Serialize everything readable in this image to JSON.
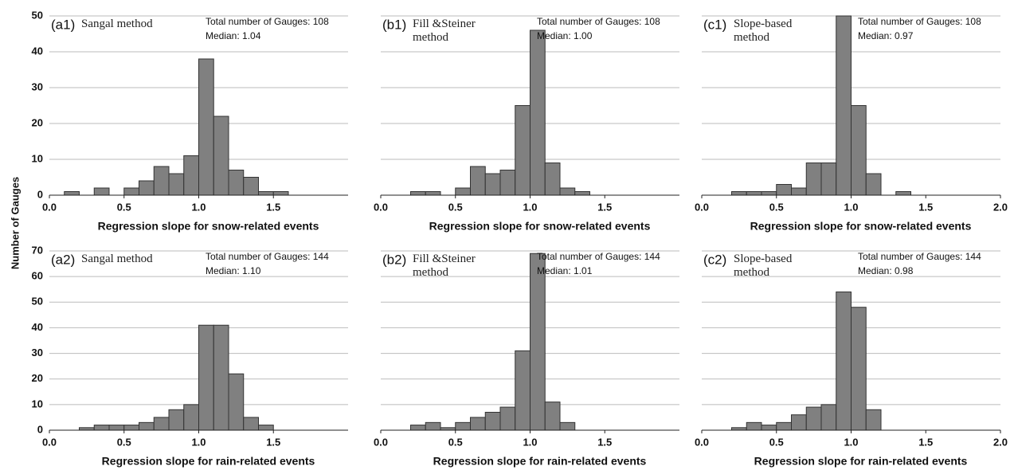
{
  "shared_ylabel": "Number of Gauges",
  "chart_data": [
    {
      "type": "histogram",
      "label": "(a1)",
      "method": "Sangal method",
      "annotations": [
        "Total number of Gauges: 108",
        "Median: 1.04"
      ],
      "xlabel": "Regression slope for snow-related events",
      "bins": [
        0.1,
        0.2,
        0.3,
        0.4,
        0.5,
        0.6,
        0.7,
        0.8,
        0.9,
        1.0,
        1.1,
        1.2,
        1.3,
        1.4,
        1.5,
        1.6
      ],
      "values": [
        1,
        0,
        2,
        0,
        2,
        4,
        8,
        6,
        11,
        38,
        22,
        7,
        5,
        1,
        1
      ],
      "color": "#808080",
      "xlim": [
        0,
        2
      ],
      "xticks": [
        {
          "value": 0,
          "label": "0.0"
        },
        {
          "value": 0.5,
          "label": "0.5"
        },
        {
          "value": 1,
          "label": "1.0"
        },
        {
          "value": 1.5,
          "label": "1.5"
        }
      ],
      "ylim": [
        0,
        50
      ],
      "yticks": [
        0,
        10,
        20,
        30,
        40,
        50
      ],
      "ytick_labels": true,
      "grid": true
    },
    {
      "type": "histogram",
      "label": "(b1)",
      "method": "Fill &Steiner method",
      "annotations": [
        "Total number of Gauges: 108",
        "Median: 1.00"
      ],
      "xlabel": "Regression slope for snow-related events",
      "bins": [
        0.2,
        0.3,
        0.4,
        0.5,
        0.6,
        0.7,
        0.8,
        0.9,
        1.0,
        1.1,
        1.2,
        1.3,
        1.4
      ],
      "values": [
        1,
        1,
        0,
        2,
        8,
        6,
        7,
        25,
        46,
        9,
        2,
        1
      ],
      "color": "#808080",
      "xlim": [
        0,
        2
      ],
      "xticks": [
        {
          "value": 0,
          "label": "0.0"
        },
        {
          "value": 0.5,
          "label": "0.5"
        },
        {
          "value": 1,
          "label": "1.0"
        },
        {
          "value": 1.5,
          "label": "1.5"
        }
      ],
      "ylim": [
        0,
        50
      ],
      "yticks": [
        0,
        10,
        20,
        30,
        40,
        50
      ],
      "ytick_labels": false,
      "grid": true
    },
    {
      "type": "histogram",
      "label": "(c1)",
      "method": "Slope-based method",
      "annotations": [
        "Total number of Gauges: 108",
        "Median: 0.97"
      ],
      "xlabel": "Regression slope for snow-related events",
      "bins": [
        0.2,
        0.3,
        0.4,
        0.5,
        0.6,
        0.7,
        0.8,
        0.9,
        1.0,
        1.1,
        1.2,
        1.3,
        1.4
      ],
      "values": [
        1,
        1,
        1,
        3,
        2,
        9,
        9,
        50,
        25,
        6,
        0,
        1
      ],
      "color": "#808080",
      "xlim": [
        0,
        2
      ],
      "xticks": [
        {
          "value": 0,
          "label": "0.0"
        },
        {
          "value": 0.5,
          "label": "0.5"
        },
        {
          "value": 1,
          "label": "1.0"
        },
        {
          "value": 1.5,
          "label": "1.5"
        },
        {
          "value": 2,
          "label": "2.0"
        }
      ],
      "ylim": [
        0,
        50
      ],
      "yticks": [
        0,
        10,
        20,
        30,
        40,
        50
      ],
      "ytick_labels": false,
      "grid": true
    },
    {
      "type": "histogram",
      "label": "(a2)",
      "method": "Sangal method",
      "annotations": [
        "Total number of Gauges: 144",
        "Median: 1.10"
      ],
      "xlabel": "Regression slope for rain-related events",
      "bins": [
        0.2,
        0.3,
        0.4,
        0.5,
        0.6,
        0.7,
        0.8,
        0.9,
        1.0,
        1.1,
        1.2,
        1.3,
        1.4,
        1.5
      ],
      "values": [
        1,
        2,
        2,
        2,
        3,
        5,
        8,
        10,
        41,
        41,
        22,
        5,
        2
      ],
      "color": "#808080",
      "xlim": [
        0,
        2
      ],
      "xticks": [
        {
          "value": 0,
          "label": "0.0"
        },
        {
          "value": 0.5,
          "label": "0.5"
        },
        {
          "value": 1,
          "label": "1.0"
        },
        {
          "value": 1.5,
          "label": "1.5"
        }
      ],
      "ylim": [
        0,
        70
      ],
      "yticks": [
        0,
        10,
        20,
        30,
        40,
        50,
        60,
        70
      ],
      "ytick_labels": true,
      "grid": true
    },
    {
      "type": "histogram",
      "label": "(b2)",
      "method": "Fill &Steiner method",
      "annotations": [
        "Total number of Gauges: 144",
        "Median: 1.01"
      ],
      "xlabel": "Regression slope for rain-related events",
      "bins": [
        0.2,
        0.3,
        0.4,
        0.5,
        0.6,
        0.7,
        0.8,
        0.9,
        1.0,
        1.1,
        1.2,
        1.3
      ],
      "values": [
        2,
        3,
        1,
        3,
        5,
        7,
        9,
        31,
        69,
        11,
        3
      ],
      "color": "#808080",
      "xlim": [
        0,
        2
      ],
      "xticks": [
        {
          "value": 0,
          "label": "0.0"
        },
        {
          "value": 0.5,
          "label": "0.5"
        },
        {
          "value": 1,
          "label": "1.0"
        },
        {
          "value": 1.5,
          "label": "1.5"
        }
      ],
      "ylim": [
        0,
        70
      ],
      "yticks": [
        0,
        10,
        20,
        30,
        40,
        50,
        60,
        70
      ],
      "ytick_labels": false,
      "grid": true
    },
    {
      "type": "histogram",
      "label": "(c2)",
      "method": "Slope-based method",
      "annotations": [
        "Total number of Gauges: 144",
        "Median: 0.98"
      ],
      "xlabel": "Regression slope for rain-related events",
      "bins": [
        0.2,
        0.3,
        0.4,
        0.5,
        0.6,
        0.7,
        0.8,
        0.9,
        1.0,
        1.1,
        1.2
      ],
      "values": [
        1,
        3,
        2,
        3,
        6,
        9,
        10,
        54,
        48,
        8
      ],
      "color": "#808080",
      "xlim": [
        0,
        2
      ],
      "xticks": [
        {
          "value": 0,
          "label": "0.0"
        },
        {
          "value": 0.5,
          "label": "0.5"
        },
        {
          "value": 1,
          "label": "1.0"
        },
        {
          "value": 1.5,
          "label": "1.5"
        },
        {
          "value": 2,
          "label": "2.0"
        }
      ],
      "ylim": [
        0,
        70
      ],
      "yticks": [
        0,
        10,
        20,
        30,
        40,
        50,
        60,
        70
      ],
      "ytick_labels": false,
      "grid": true
    }
  ]
}
